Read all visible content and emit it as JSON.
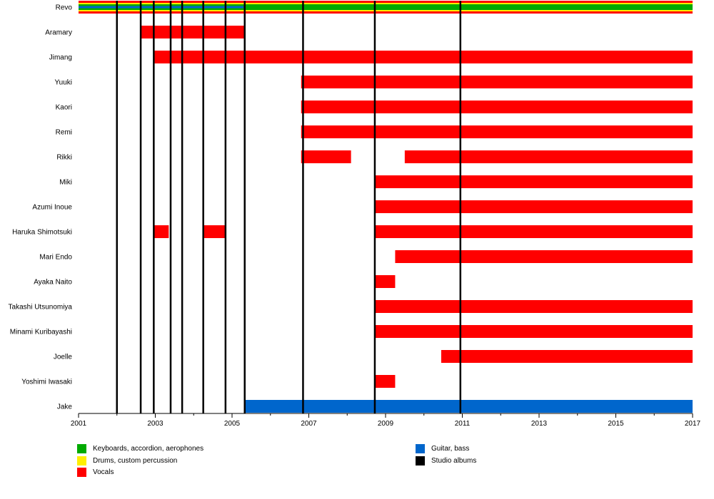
{
  "chart_data": {
    "type": "timeline",
    "xlim": [
      2001,
      2017
    ],
    "x_tick_labels": [
      "2001",
      "2003",
      "2005",
      "2007",
      "2009",
      "2011",
      "2013",
      "2015",
      "2017"
    ],
    "x_ticks_major": [
      2001,
      2003,
      2005,
      2007,
      2009,
      2011,
      2013,
      2015,
      2017
    ],
    "x_ticks_minor": [
      2002,
      2004,
      2006,
      2008,
      2010,
      2012,
      2014,
      2016
    ],
    "colors": {
      "keyboards": "#00aa00",
      "drums": "#ffee00",
      "vocals": "#ff0000",
      "guitar": "#0066cc",
      "albums": "#000000"
    },
    "members": [
      {
        "name": "Revo",
        "bars": [
          {
            "role": "vocals",
            "start": 2001.0,
            "end": 2017.0
          },
          {
            "role": "keyboards",
            "start": 2001.0,
            "end": 2017.0
          },
          {
            "role": "guitar",
            "start": 2001.0,
            "end": 2005.3
          }
        ]
      },
      {
        "name": "Aramary",
        "bars": [
          {
            "role": "vocals",
            "start": 2002.62,
            "end": 2005.33
          }
        ]
      },
      {
        "name": "Jimang",
        "bars": [
          {
            "role": "vocals",
            "start": 2002.96,
            "end": 2017.0
          }
        ]
      },
      {
        "name": "Yuuki",
        "bars": [
          {
            "role": "vocals",
            "start": 2006.8,
            "end": 2017.0
          }
        ]
      },
      {
        "name": "Kaori",
        "bars": [
          {
            "role": "vocals",
            "start": 2006.8,
            "end": 2017.0
          }
        ]
      },
      {
        "name": "Remi",
        "bars": [
          {
            "role": "vocals",
            "start": 2006.8,
            "end": 2017.0
          }
        ]
      },
      {
        "name": "Rikki",
        "bars": [
          {
            "role": "vocals",
            "start": 2006.8,
            "end": 2008.1
          },
          {
            "role": "vocals",
            "start": 2009.5,
            "end": 2017.0
          }
        ]
      },
      {
        "name": "Miki",
        "bars": [
          {
            "role": "vocals",
            "start": 2008.72,
            "end": 2017.0
          }
        ]
      },
      {
        "name": "Azumi Inoue",
        "bars": [
          {
            "role": "vocals",
            "start": 2008.72,
            "end": 2017.0
          }
        ]
      },
      {
        "name": "Haruka Shimotsuki",
        "bars": [
          {
            "role": "vocals",
            "start": 2002.96,
            "end": 2003.35
          },
          {
            "role": "vocals",
            "start": 2004.25,
            "end": 2004.83
          },
          {
            "role": "vocals",
            "start": 2008.72,
            "end": 2017.0
          }
        ]
      },
      {
        "name": "Mari Endo",
        "bars": [
          {
            "role": "vocals",
            "start": 2009.25,
            "end": 2017.0
          }
        ]
      },
      {
        "name": "Ayaka Naito",
        "bars": [
          {
            "role": "vocals",
            "start": 2008.72,
            "end": 2009.25
          }
        ]
      },
      {
        "name": "Takashi Utsunomiya",
        "bars": [
          {
            "role": "vocals",
            "start": 2008.72,
            "end": 2017.0
          }
        ]
      },
      {
        "name": "Minami Kuribayashi",
        "bars": [
          {
            "role": "vocals",
            "start": 2008.72,
            "end": 2017.0
          }
        ]
      },
      {
        "name": "Joelle",
        "bars": [
          {
            "role": "vocals",
            "start": 2010.45,
            "end": 2017.0
          }
        ]
      },
      {
        "name": "Yoshimi Iwasaki",
        "bars": [
          {
            "role": "vocals",
            "start": 2008.72,
            "end": 2009.25
          }
        ]
      },
      {
        "name": "Jake",
        "bars": [
          {
            "role": "guitar",
            "start": 2005.33,
            "end": 2017.0
          }
        ]
      }
    ],
    "album_years": [
      2002.0,
      2002.62,
      2002.96,
      2003.4,
      2003.7,
      2004.25,
      2004.83,
      2005.33,
      2006.85,
      2008.72,
      2010.95
    ],
    "legend": [
      {
        "key": "keyboards",
        "label": "Keyboards, accordion, aerophones"
      },
      {
        "key": "drums",
        "label": "Drums, custom percussion"
      },
      {
        "key": "vocals",
        "label": "Vocals"
      },
      {
        "key": "guitar",
        "label": "Guitar, bass"
      },
      {
        "key": "albums",
        "label": "Studio albums"
      }
    ]
  }
}
